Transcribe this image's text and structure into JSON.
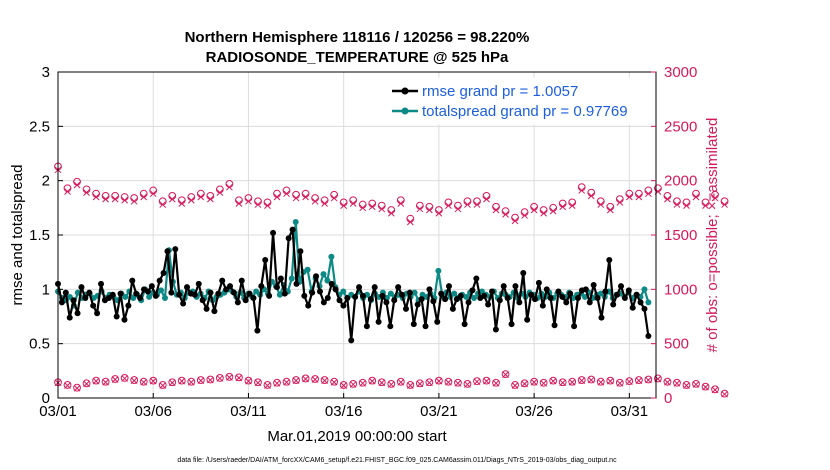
{
  "colors": {
    "rmse": "#000000",
    "spread": "#0e8a86",
    "obs": "#d6195b",
    "legend_text": "#1b5fe0",
    "grid": "#dcdcdc"
  },
  "chart_data": {
    "type": "line",
    "title": [
      "Northern Hemisphere 118116 / 120256 = 98.220%",
      "RADIOSONDE_TEMPERATURE @ 525 hPa"
    ],
    "xlabel": "Mar.01,2019 00:00:00 start",
    "ylabel": "rmse and totalspread",
    "ylabel_right": "# of obs: o=possible; ×=assimilated",
    "xlim": [
      0,
      31.4
    ],
    "ylim": [
      0,
      3
    ],
    "ylim_right": [
      0,
      3000
    ],
    "x_ticks": [
      0,
      5,
      10,
      15,
      20,
      25,
      30
    ],
    "x_tick_labels": [
      "03/01",
      "03/06",
      "03/11",
      "03/16",
      "03/21",
      "03/26",
      "03/31"
    ],
    "y_ticks": [
      0,
      0.5,
      1,
      1.5,
      2,
      2.5,
      3
    ],
    "y_tick_labels": [
      "0",
      "0.5",
      "1",
      "1.5",
      "2",
      "2.5",
      "3"
    ],
    "y_right_ticks": [
      0,
      500,
      1000,
      1500,
      2000,
      2500,
      3000
    ],
    "y_right_tick_labels": [
      "0",
      "500",
      "1000",
      "1500",
      "2000",
      "2500",
      "3000"
    ],
    "grid": true,
    "legend": {
      "position": "top-right",
      "entries": [
        "rmse grand pr = 1.0057",
        "totalspread grand pr = 0.97769"
      ]
    },
    "series": [
      {
        "name": "rmse",
        "axis": "left",
        "values": [
          1.05,
          0.88,
          0.97,
          0.74,
          0.9,
          0.78,
          1.02,
          0.92,
          0.97,
          0.85,
          0.78,
          1.05,
          0.9,
          0.92,
          0.95,
          0.75,
          0.96,
          0.72,
          0.85,
          1.08,
          0.96,
          0.92,
          1.0,
          0.98,
          1.03,
          0.94,
          1.08,
          1.15,
          1.35,
          0.97,
          1.37,
          0.95,
          0.87,
          1.02,
          0.96,
          0.95,
          1.05,
          0.9,
          0.82,
          0.97,
          0.8,
          0.96,
          1.08,
          1.0,
          1.03,
          0.97,
          0.88,
          1.08,
          0.9,
          0.96,
          0.92,
          0.62,
          1.03,
          1.27,
          0.94,
          1.52,
          1.02,
          1.1,
          0.96,
          1.47,
          1.55,
          1.05,
          1.35,
          0.94,
          0.85,
          0.97,
          1.12,
          0.98,
          0.88,
          0.92,
          1.05,
          1.0,
          0.9,
          0.85,
          0.92,
          0.53,
          0.93,
          1.02,
          0.94,
          0.66,
          0.91,
          1.02,
          0.7,
          0.94,
          0.88,
          0.66,
          0.9,
          1.02,
          0.95,
          0.82,
          0.97,
          0.68,
          0.86,
          0.91,
          0.66,
          1.0,
          0.89,
          0.7,
          0.96,
          0.91,
          1.03,
          0.82,
          0.91,
          0.94,
          0.68,
          0.88,
          0.99,
          1.1,
          0.92,
          0.94,
          0.86,
          0.98,
          0.63,
          0.9,
          1.03,
          0.92,
          0.68,
          1.03,
          0.88,
          1.15,
          0.72,
          0.95,
          0.91,
          1.06,
          0.85,
          1.0,
          0.92,
          0.67,
          0.98,
          0.93,
          0.88,
          0.96,
          0.66,
          0.92,
          0.99,
          1.0,
          0.88,
          1.04,
          0.92,
          0.74,
          0.98,
          1.27,
          0.86,
          0.95,
          1.03,
          0.92,
          0.99,
          0.83,
          0.95,
          0.88,
          0.82,
          0.57
        ]
      },
      {
        "name": "totalspread",
        "axis": "left",
        "values": [
          0.98,
          0.92,
          0.9,
          0.93,
          0.85,
          0.97,
          0.92,
          0.95,
          0.96,
          0.92,
          0.94,
          0.98,
          0.92,
          0.95,
          0.93,
          0.9,
          0.96,
          0.93,
          0.98,
          0.92,
          0.95,
          0.9,
          1.0,
          0.93,
          0.97,
          0.95,
          0.99,
          0.92,
          1.36,
          1.07,
          0.95,
          0.97,
          0.92,
          0.97,
          0.98,
          0.93,
          0.96,
          0.92,
          0.98,
          0.9,
          0.93,
          0.95,
          0.97,
          1.0,
          0.98,
          0.93,
          0.97,
          0.92,
          0.96,
          0.93,
          0.98,
          0.95,
          1.0,
          0.96,
          1.07,
          1.03,
          0.95,
          1.04,
          0.98,
          1.1,
          1.62,
          1.07,
          1.16,
          1.18,
          0.98,
          1.1,
          1.03,
          1.14,
          1.08,
          1.3,
          1.02,
          0.95,
          0.98,
          0.92,
          0.95,
          0.93,
          0.98,
          0.92,
          0.95,
          0.9,
          0.96,
          0.93,
          0.97,
          0.92,
          0.96,
          0.93,
          0.95,
          0.92,
          0.96,
          0.93,
          0.97,
          0.9,
          0.95,
          0.93,
          0.96,
          0.92,
          1.17,
          0.94,
          0.97,
          0.93,
          0.96,
          0.92,
          0.95,
          0.93,
          0.97,
          0.92,
          0.96,
          0.98,
          0.95,
          0.93,
          0.98,
          0.92,
          0.96,
          0.95,
          0.93,
          0.97,
          0.92,
          0.96,
          0.93,
          0.97,
          0.95,
          0.92,
          0.96,
          0.93,
          0.97,
          0.92,
          0.96,
          0.95,
          0.93,
          0.97,
          0.92,
          0.95,
          0.96,
          0.93,
          0.97,
          0.92,
          0.95,
          0.96,
          0.93,
          0.98,
          0.92,
          0.95,
          0.96,
          0.93,
          0.97,
          0.92,
          0.95,
          0.93,
          1.0,
          0.88
        ]
      },
      {
        "name": "obs_possible",
        "axis": "right",
        "x_step": 0.5,
        "values": [
          2130,
          1930,
          1990,
          1920,
          1880,
          1860,
          1860,
          1850,
          1840,
          1880,
          1910,
          1810,
          1860,
          1820,
          1850,
          1880,
          1860,
          1920,
          1970,
          1820,
          1840,
          1810,
          1800,
          1880,
          1910,
          1870,
          1880,
          1840,
          1820,
          1870,
          1800,
          1820,
          1780,
          1790,
          1770,
          1730,
          1820,
          1650,
          1770,
          1760,
          1730,
          1800,
          1770,
          1810,
          1810,
          1860,
          1760,
          1720,
          1660,
          1710,
          1760,
          1730,
          1750,
          1790,
          1800,
          1940,
          1890,
          1810,
          1760,
          1830,
          1880,
          1880,
          1910,
          1930,
          1860,
          1810,
          1800,
          1880,
          1800,
          1870,
          1810
        ]
      },
      {
        "name": "obs_assimilated",
        "axis": "right",
        "x_step": 0.5,
        "values": [
          2100,
          1900,
          1960,
          1890,
          1850,
          1830,
          1830,
          1820,
          1810,
          1850,
          1880,
          1780,
          1830,
          1790,
          1820,
          1850,
          1830,
          1890,
          1940,
          1790,
          1810,
          1780,
          1770,
          1850,
          1880,
          1840,
          1850,
          1810,
          1790,
          1840,
          1770,
          1790,
          1750,
          1760,
          1740,
          1700,
          1790,
          1620,
          1740,
          1730,
          1700,
          1770,
          1740,
          1780,
          1780,
          1830,
          1730,
          1690,
          1630,
          1680,
          1730,
          1700,
          1720,
          1760,
          1770,
          1910,
          1860,
          1780,
          1730,
          1800,
          1850,
          1850,
          1880,
          1900,
          1830,
          1780,
          1770,
          1850,
          1770,
          1840,
          1780
        ]
      },
      {
        "name": "obs_possible_0600",
        "axis": "right",
        "x_step": 0.5,
        "values": [
          145,
          120,
          95,
          135,
          160,
          150,
          175,
          185,
          165,
          150,
          160,
          120,
          145,
          160,
          150,
          165,
          170,
          185,
          195,
          190,
          160,
          145,
          120,
          140,
          150,
          165,
          180,
          175,
          165,
          150,
          120,
          130,
          140,
          160,
          145,
          130,
          150,
          120,
          135,
          145,
          160,
          150,
          140,
          130,
          155,
          160,
          140,
          220,
          120,
          135,
          150,
          140,
          160,
          145,
          150,
          165,
          170,
          150,
          160,
          140,
          155,
          165,
          170,
          180,
          150,
          140,
          120,
          130,
          105,
          80,
          40
        ]
      },
      {
        "name": "obs_assimilated_0600",
        "axis": "right",
        "x_step": 0.5,
        "values": [
          140,
          115,
          90,
          130,
          155,
          145,
          170,
          180,
          160,
          145,
          155,
          115,
          140,
          155,
          145,
          160,
          165,
          180,
          190,
          185,
          155,
          140,
          115,
          135,
          145,
          160,
          175,
          170,
          160,
          145,
          115,
          125,
          135,
          155,
          140,
          125,
          145,
          115,
          130,
          140,
          155,
          145,
          135,
          125,
          150,
          155,
          135,
          215,
          115,
          130,
          145,
          135,
          155,
          140,
          145,
          160,
          165,
          145,
          155,
          135,
          150,
          160,
          165,
          175,
          145,
          135,
          115,
          125,
          100,
          75,
          35
        ]
      }
    ]
  },
  "footnote": "data file: /Users/raeder/DAI/ATM_forcXX/CAM6_setup/f.e21.FHIST_BGC.f09_025.CAM6assim.011/Diags_NTrS_2019-03/obs_diag_output.nc"
}
